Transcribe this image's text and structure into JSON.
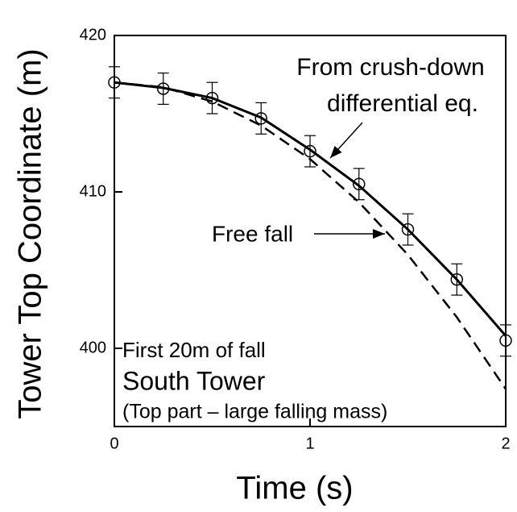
{
  "chart_data": {
    "type": "scatter",
    "xlabel": "Time (s)",
    "ylabel": "Tower Top Coordinate (m)",
    "xlim": [
      0,
      2
    ],
    "ylim": [
      395,
      420
    ],
    "xticks": [
      0,
      1,
      2
    ],
    "yticks": [
      400,
      410,
      420
    ],
    "points": {
      "x": [
        0,
        0.25,
        0.5,
        0.75,
        1,
        1.25,
        1.5,
        1.75,
        2
      ],
      "values": [
        417.0,
        416.6,
        416.0,
        414.7,
        412.6,
        410.5,
        407.6,
        404.4,
        400.5
      ],
      "errors": [
        1,
        1,
        1,
        1,
        1,
        1,
        1,
        1,
        1
      ],
      "color": "#000000"
    },
    "series": [
      {
        "name": "From crush-down differential eq.",
        "style": "solid",
        "color": "#000000",
        "x": [
          0,
          0.25,
          0.5,
          0.75,
          1,
          1.25,
          1.5,
          1.75,
          2
        ],
        "values": [
          417.0,
          416.65,
          416.0,
          414.75,
          412.7,
          410.4,
          407.6,
          404.4,
          400.8
        ]
      },
      {
        "name": "Free fall",
        "style": "dashed",
        "color": "#000000",
        "x": [
          0,
          0.25,
          0.5,
          0.75,
          1,
          1.25,
          1.5,
          1.75,
          2
        ],
        "values": [
          417.0,
          416.69,
          415.78,
          414.24,
          412.1,
          409.34,
          405.98,
          401.99,
          397.4
        ]
      }
    ],
    "annotations": [
      "From crush-down",
      "differential eq.",
      "Free fall",
      "First 20m of fall",
      "South Tower",
      "(Top part – large falling mass)"
    ]
  }
}
